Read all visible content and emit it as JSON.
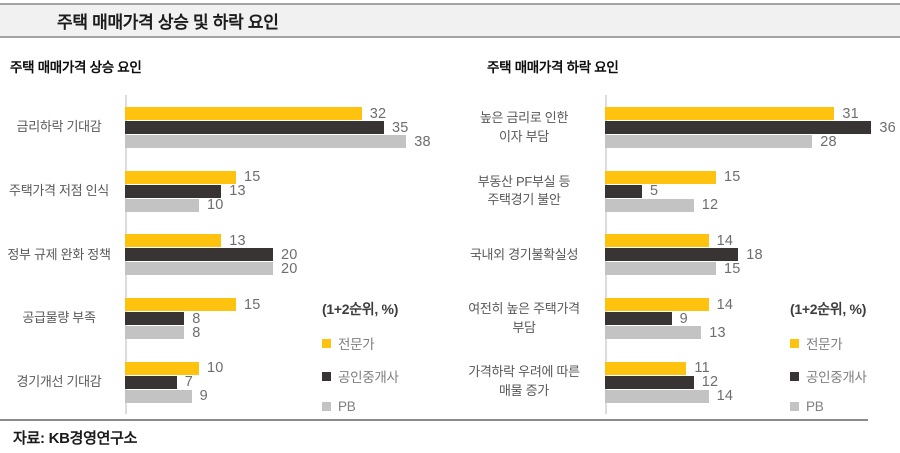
{
  "header": {
    "title": "주택 매매가격 상승 및 하락 요인"
  },
  "source": {
    "text": "자료: KB경영연구소"
  },
  "colors": {
    "expert_yellow": "#FFC20E",
    "agent_dark": "#383434",
    "pb_gray": "#C3C3C3",
    "label_gray": "#595959",
    "value_gray": "#6E6E6E"
  },
  "legend": {
    "note": "(1+2순위, %)",
    "items": [
      {
        "key": "expert",
        "label": "전문가",
        "color": "#FFC20E"
      },
      {
        "key": "agent",
        "label": "공인중개사",
        "color": "#383434"
      },
      {
        "key": "pb",
        "label": "PB",
        "color": "#C3C3C3"
      }
    ]
  },
  "chart_data": [
    {
      "type": "bar",
      "orientation": "horizontal",
      "title": "주택 매매가격 상승 요인",
      "unit_note": "(1+2순위, %)",
      "xlim": [
        0,
        40
      ],
      "grid": false,
      "legend_position": "right-bottom",
      "categories": [
        "금리하락 기대감",
        "주택가격 저점 인식",
        "정부 규제 완화 정책",
        "공급물량 부족",
        "경기개선 기대감"
      ],
      "series": [
        {
          "key": "expert",
          "name": "전문가",
          "color": "#FFC20E",
          "values": [
            32,
            15,
            13,
            15,
            10
          ]
        },
        {
          "key": "agent",
          "name": "공인중개사",
          "color": "#383434",
          "values": [
            35,
            13,
            20,
            8,
            7
          ]
        },
        {
          "key": "pb",
          "name": "PB",
          "color": "#C3C3C3",
          "values": [
            38,
            10,
            20,
            8,
            9
          ]
        }
      ]
    },
    {
      "type": "bar",
      "orientation": "horizontal",
      "title": "주택 매매가격 하락 요인",
      "unit_note": "(1+2순위, %)",
      "xlim": [
        0,
        40
      ],
      "grid": false,
      "legend_position": "right-bottom",
      "categories": [
        "높은 금리로 인한\n이자 부담",
        "부동산 PF부실 등\n주택경기 불안",
        "국내외 경기불확실성",
        "여전히 높은 주택가격\n부담",
        "가격하락 우려에 따른\n매물 증가"
      ],
      "series": [
        {
          "key": "expert",
          "name": "전문가",
          "color": "#FFC20E",
          "values": [
            31,
            15,
            14,
            14,
            11
          ]
        },
        {
          "key": "agent",
          "name": "공인중개사",
          "color": "#383434",
          "values": [
            36,
            5,
            18,
            9,
            12
          ]
        },
        {
          "key": "pb",
          "name": "PB",
          "color": "#C3C3C3",
          "values": [
            28,
            12,
            15,
            13,
            14
          ]
        }
      ]
    }
  ]
}
